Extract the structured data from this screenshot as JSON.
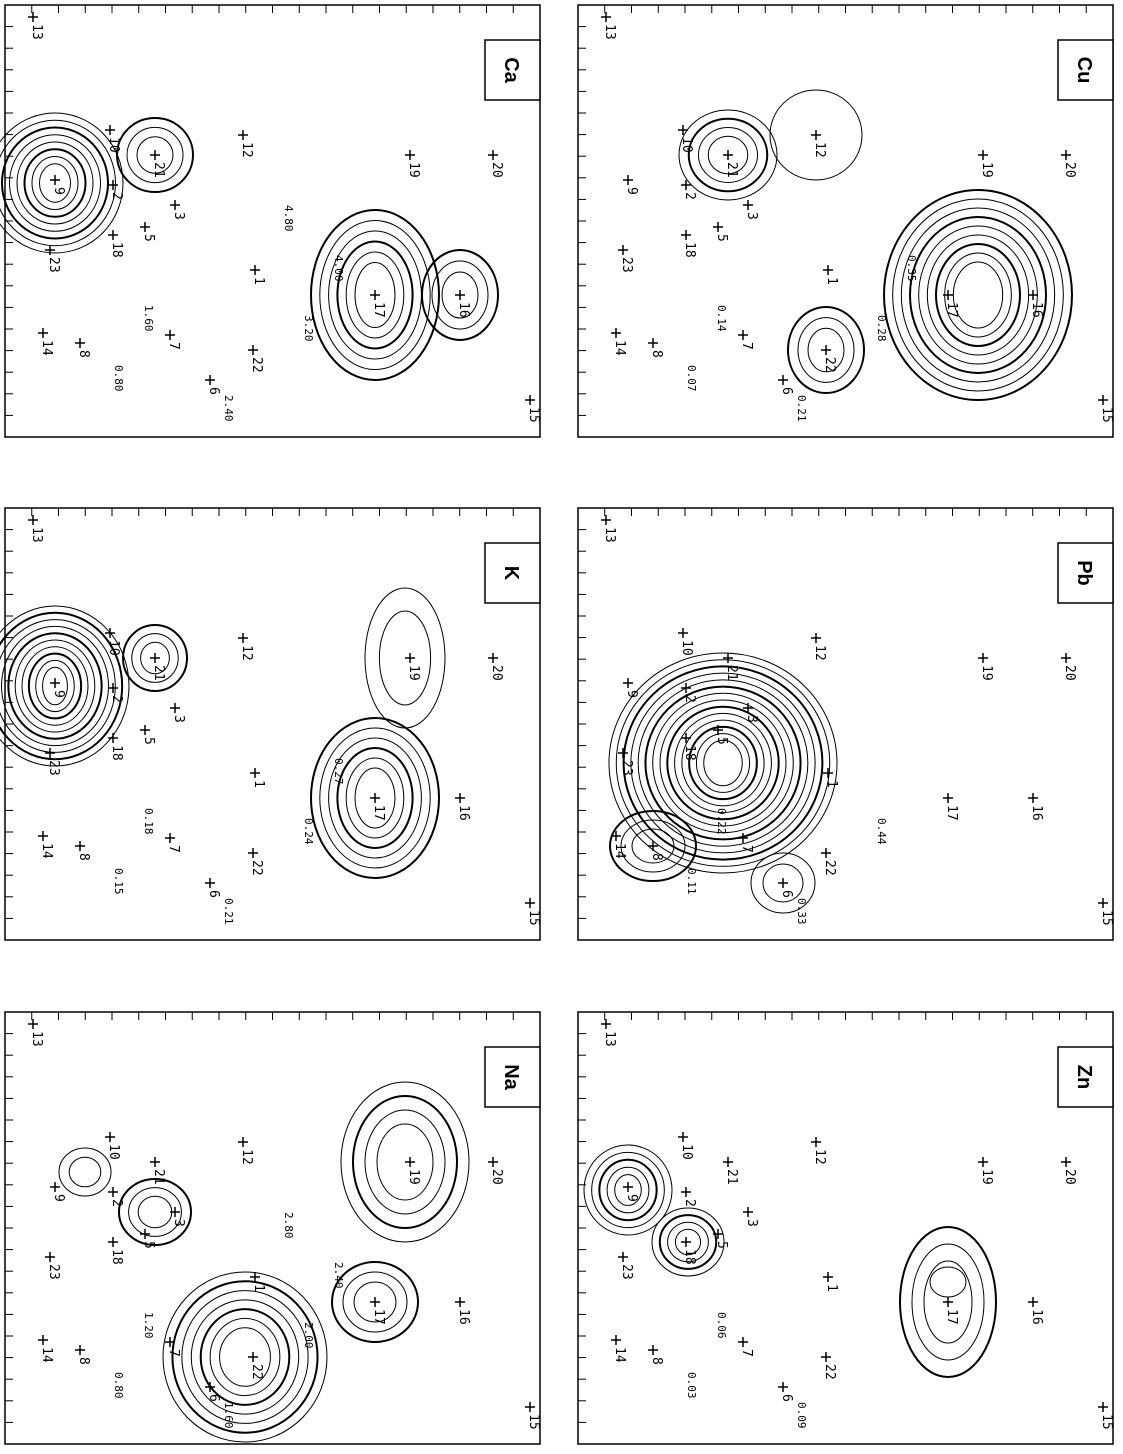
{
  "panels": [
    {
      "element": "Ca",
      "contour_labels": [
        "0.80",
        "1.60",
        "2.40",
        "3.20",
        "4.00",
        "4.80"
      ]
    },
    {
      "element": "Cu",
      "contour_labels": [
        "0.07",
        "0.14",
        "0.21",
        "0.28",
        "0.35"
      ]
    },
    {
      "element": "K",
      "contour_labels": [
        "0.15",
        "0.18",
        "0.21",
        "0.24",
        "0.27"
      ]
    },
    {
      "element": "Pb",
      "contour_labels": [
        "0.11",
        "0.22",
        "0.33",
        "0.44"
      ]
    },
    {
      "element": "Na",
      "contour_labels": [
        "0.80",
        "1.20",
        "1.60",
        "2.00",
        "2.40",
        "2.80"
      ]
    },
    {
      "element": "Zn",
      "contour_labels": [
        "0.03",
        "0.06",
        "0.09"
      ]
    }
  ],
  "wells": [
    "13",
    "14",
    "8",
    "23",
    "9",
    "2",
    "18",
    "5",
    "10",
    "21",
    "3",
    "12",
    "7",
    "6",
    "1",
    "22",
    "17",
    "16",
    "19",
    "20",
    "15"
  ]
}
